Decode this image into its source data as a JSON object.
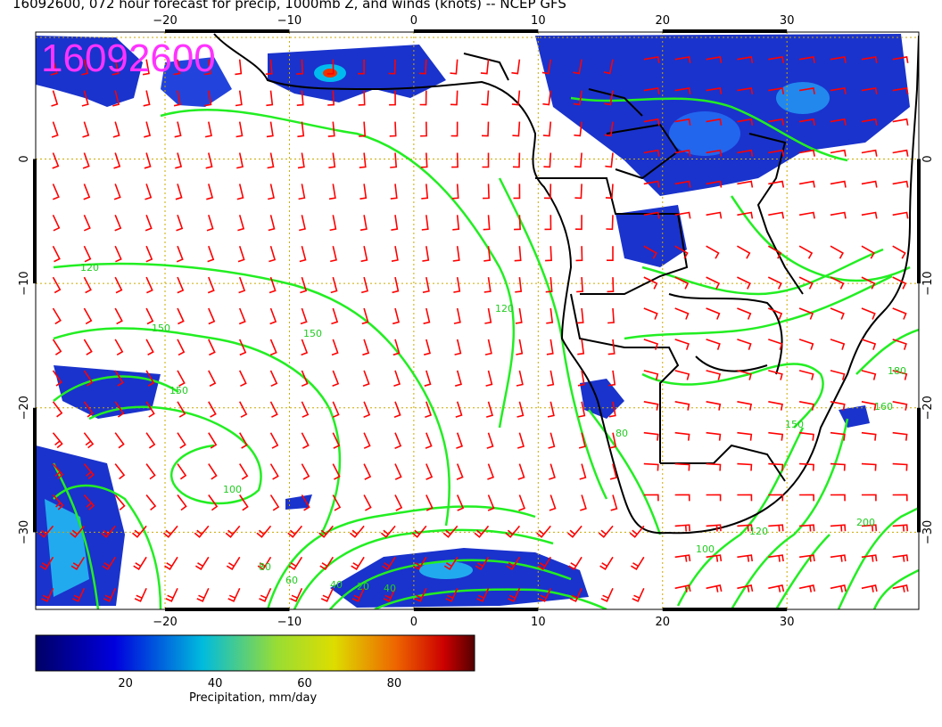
{
  "title": "16092600, 072 hour forecast for precip, 1000mb Z, and winds (knots) -- NCEP GFS",
  "date_stamp": "16092600",
  "lon_ticks": [
    {
      "value": -20,
      "label": "−20"
    },
    {
      "value": -10,
      "label": "−10"
    },
    {
      "value": 0,
      "label": "0"
    },
    {
      "value": 10,
      "label": "10"
    },
    {
      "value": 20,
      "label": "20"
    },
    {
      "value": 30,
      "label": "30"
    }
  ],
  "lat_ticks": [
    {
      "value": 0,
      "label": "0"
    },
    {
      "value": -10,
      "label": "−10"
    },
    {
      "value": -20,
      "label": "−20"
    },
    {
      "value": -30,
      "label": "−30"
    }
  ],
  "contour_labels": [
    "120",
    "150",
    "150",
    "150",
    "120",
    "100",
    "80",
    "60",
    "40",
    "20",
    "40",
    "80",
    "100",
    "120",
    "150",
    "160",
    "180",
    "200"
  ],
  "colorbar": {
    "label": "Precipitation, mm/day",
    "ticks": [
      "20",
      "40",
      "60",
      "80"
    ],
    "min": 0,
    "max": 98
  },
  "colors": {
    "wind_barbs": "#ff0000",
    "contours": "#22ee22",
    "coastline": "#000000",
    "grid": "#ccaa00",
    "stamp": "#ff33ff"
  }
}
